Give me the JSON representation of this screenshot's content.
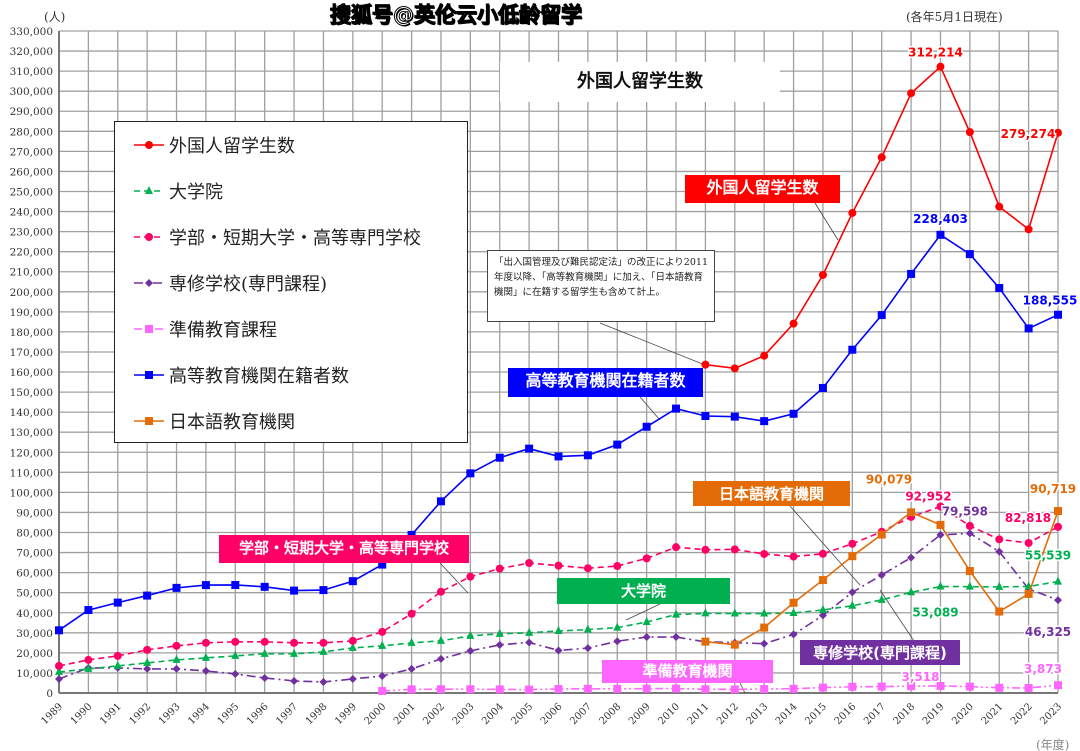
{
  "chart_data": {
    "type": "line",
    "title": "外国人留学生数",
    "ylabel": "(人)",
    "xlabel": "(年度)",
    "note_top_right": "(各年5月1日現在)",
    "ylim": [
      0,
      330000
    ],
    "ytick_step": 10000,
    "grid": true,
    "legend_position": "top-left",
    "x": [
      1989,
      1990,
      1991,
      1992,
      1993,
      1994,
      1995,
      1996,
      1997,
      1998,
      1999,
      2000,
      2001,
      2002,
      2003,
      2004,
      2005,
      2006,
      2007,
      2008,
      2009,
      2010,
      2011,
      2012,
      2013,
      2014,
      2015,
      2016,
      2017,
      2018,
      2019,
      2020,
      2021,
      2022,
      2023
    ],
    "series": [
      {
        "name": "外国人留学生数",
        "color": "#ff0000",
        "marker": "circle",
        "dash": "solid",
        "values": [
          null,
          null,
          null,
          null,
          null,
          null,
          null,
          null,
          null,
          null,
          null,
          null,
          null,
          null,
          null,
          null,
          null,
          null,
          null,
          null,
          null,
          null,
          163697,
          161848,
          168145,
          184155,
          208379,
          239287,
          267042,
          298980,
          312214,
          279597,
          242444,
          231146,
          279274
        ]
      },
      {
        "name": "大学院",
        "color": "#00b050",
        "marker": "triangle",
        "dash": "dashed",
        "values": [
          10500,
          12000,
          13500,
          15000,
          16500,
          17500,
          18500,
          19500,
          19500,
          20500,
          22500,
          23500,
          25000,
          26000,
          28500,
          29500,
          30000,
          30900,
          31600,
          32600,
          35400,
          39100,
          39700,
          39600,
          39600,
          39900,
          41400,
          43500,
          46400,
          50200,
          53089,
          53000,
          52900,
          53100,
          55539
        ]
      },
      {
        "name": "学部・短期大学・高等専門学校",
        "color": "#ff0066",
        "marker": "circle",
        "dash": "dashed",
        "values": [
          13500,
          16500,
          18500,
          21500,
          23500,
          25000,
          25500,
          25500,
          25000,
          25000,
          26000,
          30500,
          39500,
          50500,
          58000,
          62000,
          64800,
          63500,
          62200,
          63300,
          67100,
          72700,
          71400,
          71600,
          69300,
          68000,
          69400,
          74400,
          80400,
          87800,
          92952,
          83300,
          76600,
          74800,
          82818
        ]
      },
      {
        "name": "専修学校(専門課程)",
        "color": "#7030a0",
        "marker": "diamond",
        "dash": "dashdot",
        "values": [
          7000,
          12500,
          12500,
          12000,
          12000,
          11000,
          9500,
          7500,
          6000,
          5500,
          7000,
          8500,
          12000,
          17000,
          21000,
          24000,
          25200,
          21200,
          22400,
          25800,
          27900,
          27900,
          25500,
          25100,
          24600,
          29200,
          38700,
          50200,
          58800,
          67500,
          78800,
          79598,
          70500,
          51900,
          46325
        ]
      },
      {
        "name": "準備教育課程",
        "color": "#ff66ff",
        "marker": "square",
        "dash": "dashdotdot",
        "values": [
          null,
          null,
          null,
          null,
          null,
          null,
          null,
          null,
          null,
          null,
          null,
          1000,
          1800,
          1900,
          1900,
          1800,
          1700,
          2000,
          2100,
          2100,
          2200,
          2200,
          1900,
          1800,
          2000,
          2100,
          2700,
          3100,
          3200,
          3400,
          3518,
          3200,
          2600,
          2500,
          3873
        ]
      },
      {
        "name": "高等教育機関在籍者数",
        "color": "#0000ff",
        "marker": "square",
        "dash": "solid",
        "values": [
          31251,
          41347,
          45066,
          48561,
          52405,
          53787,
          53847,
          52921,
          51047,
          51298,
          55755,
          64011,
          78812,
          95550,
          109508,
          117302,
          121812,
          117927,
          118498,
          123829,
          132720,
          141774,
          138075,
          137756,
          135519,
          139185,
          152062,
          171122,
          188384,
          208901,
          228403,
          218783,
          201877,
          181741,
          188555
        ]
      },
      {
        "name": "日本語教育機関",
        "color": "#e36c09",
        "marker": "square",
        "dash": "solid",
        "values": [
          null,
          null,
          null,
          null,
          null,
          null,
          null,
          null,
          null,
          null,
          null,
          null,
          null,
          null,
          null,
          null,
          null,
          null,
          null,
          null,
          null,
          null,
          25600,
          24100,
          32600,
          44970,
          56300,
          68200,
          79000,
          90079,
          83800,
          60800,
          40600,
          49400,
          90719
        ]
      }
    ],
    "data_labels": [
      {
        "series": 0,
        "year": 2019,
        "text": "312,214"
      },
      {
        "series": 0,
        "year": 2023,
        "text": "279,274"
      },
      {
        "series": 5,
        "year": 2019,
        "text": "228,403"
      },
      {
        "series": 5,
        "year": 2023,
        "text": "188,555"
      },
      {
        "series": 6,
        "year": 2018,
        "text": "90,079"
      },
      {
        "series": 2,
        "year": 2019,
        "text": "92,952"
      },
      {
        "series": 3,
        "year": 2020,
        "text": "79,598"
      },
      {
        "series": 6,
        "year": 2023,
        "text": "90,719"
      },
      {
        "series": 2,
        "year": 2023,
        "text": "82,818"
      },
      {
        "series": 1,
        "year": 2023,
        "text": "55,539"
      },
      {
        "series": 1,
        "year": 2019,
        "text": "53,089"
      },
      {
        "series": 3,
        "year": 2023,
        "text": "46,325"
      },
      {
        "series": 4,
        "year": 2019,
        "text": "3,518"
      },
      {
        "series": 4,
        "year": 2023,
        "text": "3,873"
      }
    ],
    "callouts": [
      "外国人留学生数",
      "高等教育機関在籍者数",
      "学部・短期大学・高等専門学校",
      "大学院",
      "日本語教育機関",
      "専修学校(専門課程)",
      "準備教育機関"
    ],
    "annotation": "「出入国管理及び難民認定法」の改正により2011年度以降、「高等教育機関」に加え、「日本語教育機関」に在籍する留学生も含めて計上。"
  },
  "watermark": "搜狐号@英伦云小低龄留学"
}
